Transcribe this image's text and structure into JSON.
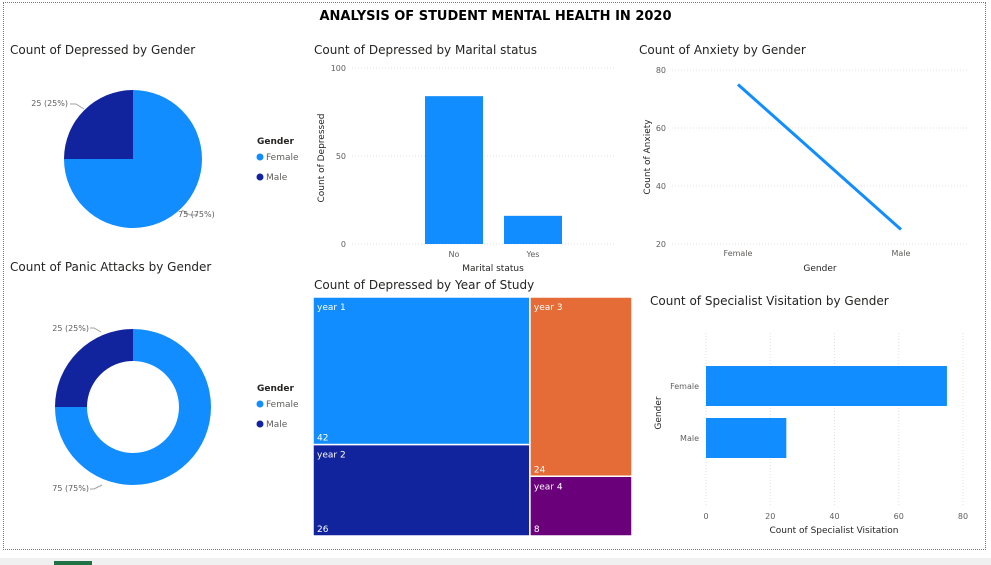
{
  "report_title": "ANALYSIS OF STUDENT MENTAL HEALTH IN 2020",
  "colors": {
    "female": "#118DFF",
    "male": "#12239E",
    "year3": "#E66C37",
    "year4": "#6B007B"
  },
  "chart_data": [
    {
      "id": "depressed_gender",
      "type": "pie",
      "title": "Count of Depressed by Gender",
      "legend_title": "Gender",
      "legend_position": "right",
      "slices": [
        {
          "name": "Female",
          "value": 75,
          "label": "75 (75%)"
        },
        {
          "name": "Male",
          "value": 25,
          "label": "25 (25%)"
        }
      ]
    },
    {
      "id": "depressed_marital",
      "type": "bar",
      "title": "Count of Depressed by Marital status",
      "xlabel": "Marital status",
      "ylabel": "Count of Depressed",
      "categories": [
        "No",
        "Yes"
      ],
      "values": [
        84,
        16
      ],
      "ylim": [
        0,
        100
      ],
      "yticks": [
        0,
        50,
        100
      ],
      "grid": true
    },
    {
      "id": "anxiety_gender",
      "type": "line",
      "title": "Count of Anxiety by Gender",
      "xlabel": "Gender",
      "ylabel": "Count of Anxiety",
      "categories": [
        "Female",
        "Male"
      ],
      "values": [
        75,
        25
      ],
      "ylim": [
        20,
        80
      ],
      "yticks": [
        20,
        40,
        60,
        80
      ],
      "grid": true
    },
    {
      "id": "panic_gender",
      "type": "pie",
      "donut": true,
      "title": "Count of Panic Attacks by Gender",
      "legend_title": "Gender",
      "legend_position": "right",
      "slices": [
        {
          "name": "Female",
          "value": 75,
          "label": "75 (75%)"
        },
        {
          "name": "Male",
          "value": 25,
          "label": "25 (25%)"
        }
      ]
    },
    {
      "id": "depressed_year",
      "type": "treemap",
      "title": "Count of Depressed by Year of Study",
      "items": [
        {
          "name": "year 1",
          "value": 42
        },
        {
          "name": "year 2",
          "value": 26
        },
        {
          "name": "year 3",
          "value": 24
        },
        {
          "name": "year 4",
          "value": 8
        }
      ]
    },
    {
      "id": "specialist_gender",
      "type": "bar",
      "orientation": "horizontal",
      "title": "Count of Specialist Visitation by Gender",
      "xlabel": "Count of Specialist Visitation",
      "ylabel": "Gender",
      "categories": [
        "Female",
        "Male"
      ],
      "values": [
        75,
        25
      ],
      "xlim": [
        0,
        80
      ],
      "xticks": [
        0,
        20,
        40,
        60,
        80
      ],
      "grid": true
    }
  ]
}
